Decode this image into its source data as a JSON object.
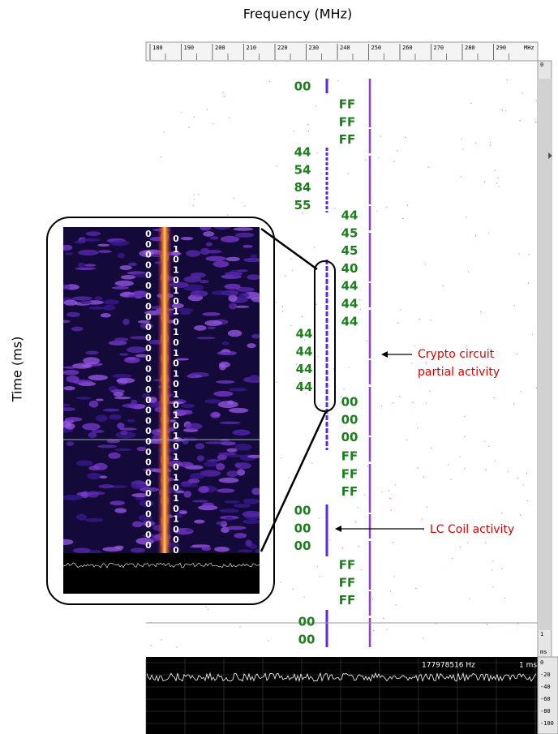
{
  "axis_labels": {
    "x": "Frequency (MHz)",
    "y": "Time (ms)"
  },
  "frequency_ruler": {
    "ticks": [
      "180",
      "190",
      "200",
      "210",
      "220",
      "230",
      "240",
      "250",
      "260",
      "270",
      "280",
      "290"
    ],
    "unit": "MHz"
  },
  "time_ruler": {
    "start": "0",
    "end": "1",
    "unit": "ms"
  },
  "byte_groups": [
    {
      "bytes": [
        "00"
      ]
    },
    {
      "bytes": [
        "FF",
        "FF",
        "FF"
      ]
    },
    {
      "bytes": [
        "44",
        "54",
        "84",
        "55"
      ]
    },
    {
      "bytes": [
        "44",
        "45",
        "45",
        "40",
        "44",
        "44",
        "44"
      ]
    },
    {
      "bytes": [
        "44",
        "44",
        "44",
        "44"
      ]
    },
    {
      "bytes": [
        "00",
        "00",
        "00"
      ]
    },
    {
      "bytes": [
        "FF",
        "FF",
        "FF"
      ]
    },
    {
      "bytes": [
        "00",
        "00",
        "00"
      ]
    },
    {
      "bytes": [
        "FF",
        "FF",
        "FF"
      ]
    },
    {
      "bytes": [
        "00",
        "00"
      ]
    }
  ],
  "inset_bits": {
    "left": [
      "0",
      "0",
      "0",
      "0",
      "0",
      "0",
      "0",
      "0",
      "0",
      "0",
      "0",
      "0",
      "0",
      "0",
      "0",
      "0",
      "0",
      "0",
      "0",
      "0",
      "0",
      "0",
      "0",
      "0",
      "0",
      "0",
      "0",
      "0",
      "0",
      "0",
      "0"
    ],
    "right": [
      "0",
      "1",
      "0",
      "1",
      "0",
      "1",
      "0",
      "1",
      "0",
      "1",
      "0",
      "1",
      "0",
      "1",
      "0",
      "1",
      "0",
      "1",
      "0",
      "1",
      "0",
      "1",
      "0",
      "1",
      "0",
      "1",
      "0",
      "1",
      "0",
      "0",
      "0"
    ]
  },
  "annotations": [
    {
      "lines": [
        "Crypto circuit",
        "partial activity"
      ]
    },
    {
      "lines": [
        "LC Coil activity"
      ]
    }
  ],
  "waveform_panel": {
    "frequency": "177978516 Hz",
    "span": "1 ms",
    "db_labels": [
      "0",
      "-20",
      "-40",
      "-60",
      "-80",
      "-100"
    ]
  }
}
